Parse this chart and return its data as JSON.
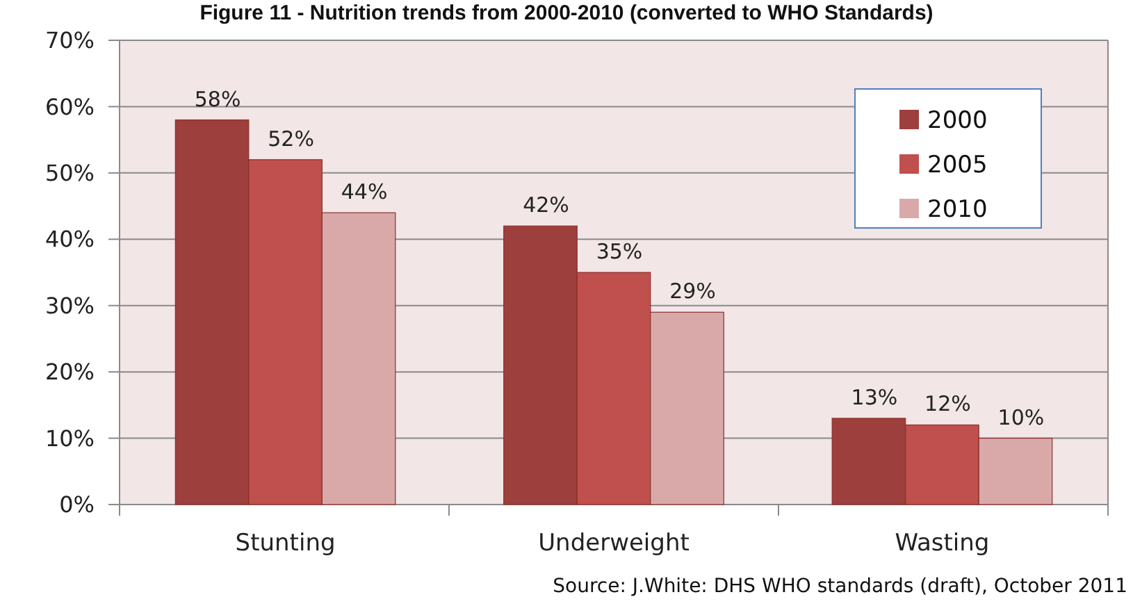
{
  "chart_data": {
    "type": "bar",
    "title": "Figure 11 - Nutrition trends from 2000-2010 (converted to WHO Standards)",
    "categories": [
      "Stunting",
      "Underweight",
      "Wasting"
    ],
    "series": [
      {
        "name": "2000",
        "color": "#9c3f3d",
        "values": [
          58,
          42,
          13
        ],
        "value_labels": [
          "58%",
          "42%",
          "13%"
        ]
      },
      {
        "name": "2005",
        "color": "#c0504d",
        "values": [
          52,
          35,
          12
        ],
        "value_labels": [
          "52%",
          "35%",
          "12%"
        ]
      },
      {
        "name": "2010",
        "color": "#d9a9a9",
        "values": [
          44,
          29,
          10
        ],
        "value_labels": [
          "44%",
          "29%",
          "10%"
        ]
      }
    ],
    "ylim": [
      0,
      70
    ],
    "yticks": [
      {
        "value": 0,
        "label": "0%"
      },
      {
        "value": 10,
        "label": "10%"
      },
      {
        "value": 20,
        "label": "20%"
      },
      {
        "value": 30,
        "label": "30%"
      },
      {
        "value": 40,
        "label": "40%"
      },
      {
        "value": 50,
        "label": "50%"
      },
      {
        "value": 60,
        "label": "60%"
      },
      {
        "value": 70,
        "label": "70%"
      }
    ],
    "grid": "y",
    "legend": "top right",
    "annotations": [
      "Source: J.White: DHS WHO standards (draft), October 2011"
    ]
  }
}
